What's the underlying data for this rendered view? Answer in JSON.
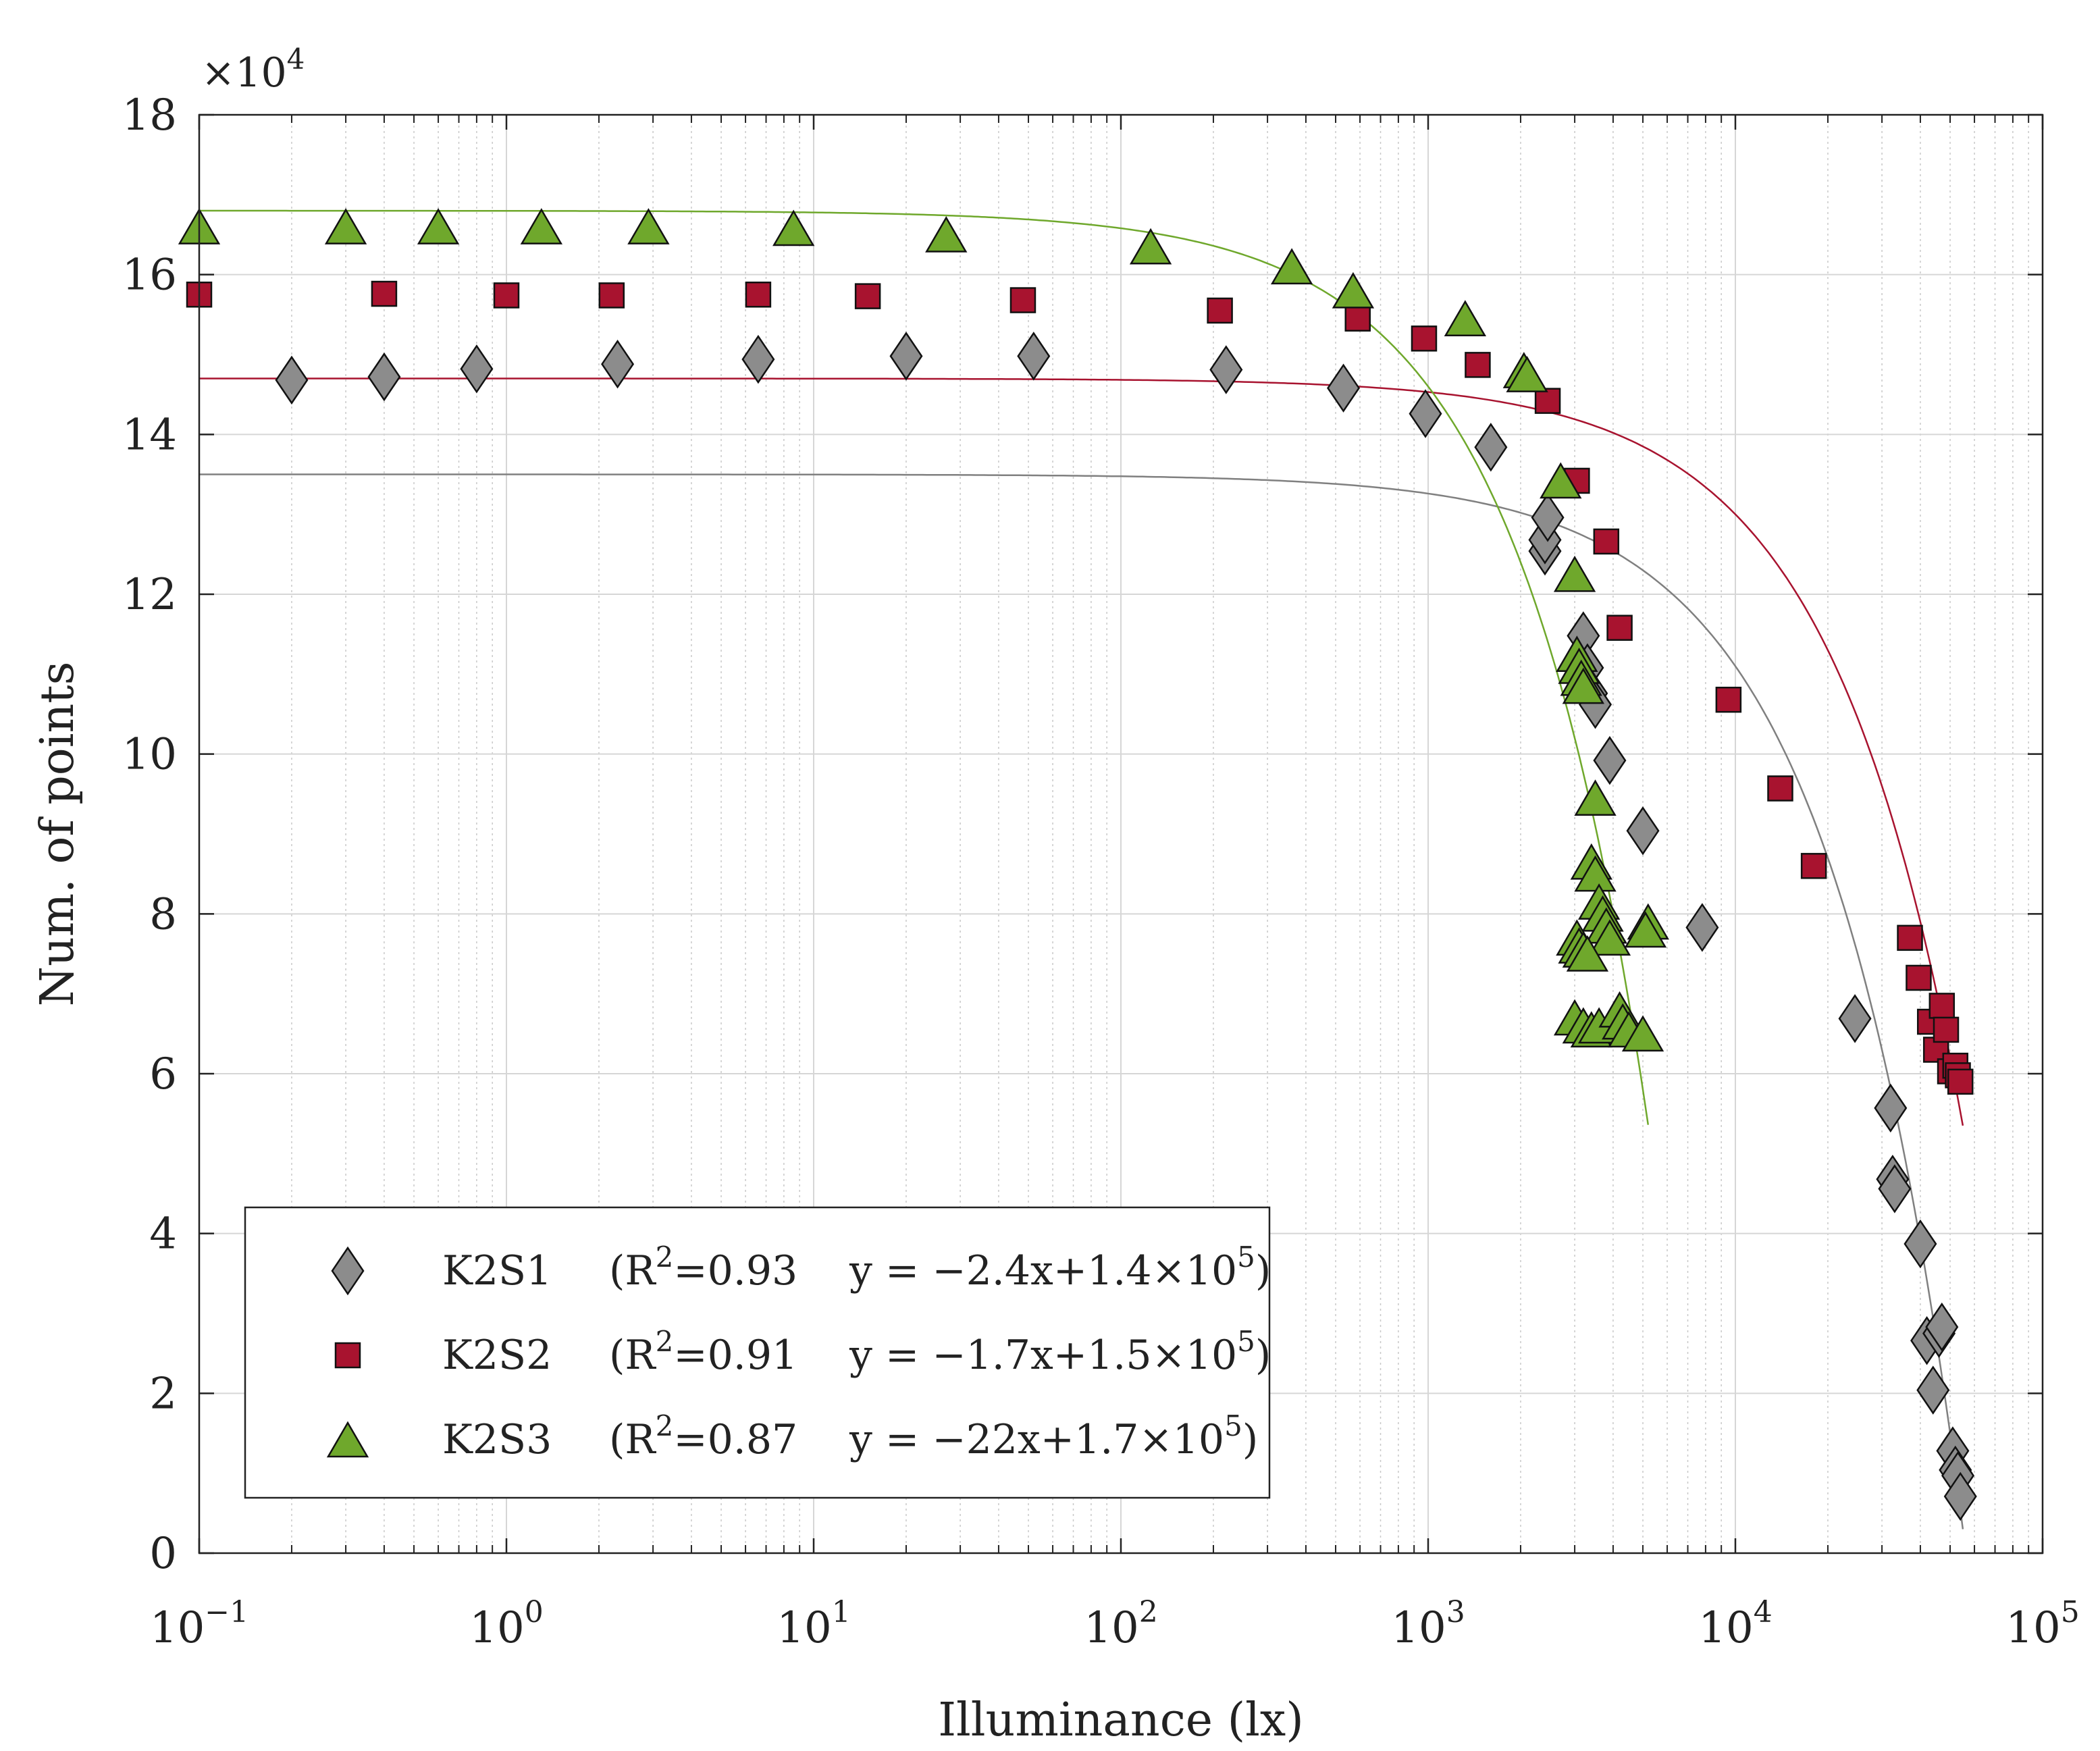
{
  "chart_data": {
    "type": "scatter",
    "title": "",
    "xlabel": "Illuminance (lx)",
    "ylabel": "Num. of points",
    "xscale": "log",
    "xlim": [
      0.1,
      100000
    ],
    "ylim": [
      0,
      180000
    ],
    "y_multiplier_label": "×10",
    "y_multiplier_exponent": "4",
    "grid": true,
    "legend_position": "bottom-left",
    "x_ticks": [
      {
        "base": "10",
        "exp": "−1",
        "value": 0.1
      },
      {
        "base": "10",
        "exp": "0",
        "value": 1
      },
      {
        "base": "10",
        "exp": "1",
        "value": 10
      },
      {
        "base": "10",
        "exp": "2",
        "value": 100
      },
      {
        "base": "10",
        "exp": "3",
        "value": 1000
      },
      {
        "base": "10",
        "exp": "4",
        "value": 10000
      },
      {
        "base": "10",
        "exp": "5",
        "value": 100000
      }
    ],
    "y_ticks": [
      {
        "label": "0",
        "value": 0
      },
      {
        "label": "2",
        "value": 20000
      },
      {
        "label": "4",
        "value": 40000
      },
      {
        "label": "6",
        "value": 60000
      },
      {
        "label": "8",
        "value": 80000
      },
      {
        "label": "10",
        "value": 100000
      },
      {
        "label": "12",
        "value": 120000
      },
      {
        "label": "14",
        "value": 140000
      },
      {
        "label": "16",
        "value": 160000
      },
      {
        "label": "18",
        "value": 180000
      }
    ],
    "series": [
      {
        "name": "K2S1",
        "marker": "diamond",
        "color": "#8c8c8c",
        "fit_color": "#808080",
        "legend": {
          "label": "K2S1",
          "r2_prefix": "(R",
          "r2_exp": "2",
          "r2_value": "=0.93",
          "eq_prefix": "y = −2.4x+1.4×10",
          "eq_exp": "5",
          "eq_suffix": ")"
        },
        "fit": {
          "a": 2.4,
          "b": 135000,
          "x_end": 55000
        },
        "points": [
          [
            0.2,
            146800
          ],
          [
            0.4,
            147200
          ],
          [
            0.8,
            148200
          ],
          [
            2.3,
            148800
          ],
          [
            6.6,
            149400
          ],
          [
            20,
            149800
          ],
          [
            52,
            149800
          ],
          [
            220,
            148100
          ],
          [
            530,
            145800
          ],
          [
            980,
            142600
          ],
          [
            1600,
            138400
          ],
          [
            2400,
            125400
          ],
          [
            2400,
            126800
          ],
          [
            2450,
            129600
          ],
          [
            3200,
            114800
          ],
          [
            3300,
            110800
          ],
          [
            3400,
            107600
          ],
          [
            3500,
            106200
          ],
          [
            3900,
            99200
          ],
          [
            5000,
            90400
          ],
          [
            7800,
            78300
          ],
          [
            24500,
            66900
          ],
          [
            32000,
            55700
          ],
          [
            32500,
            46800
          ],
          [
            33000,
            45600
          ],
          [
            40000,
            38700
          ],
          [
            42000,
            26600
          ],
          [
            44000,
            20400
          ],
          [
            46000,
            27500
          ],
          [
            47000,
            28300
          ],
          [
            51000,
            12800
          ],
          [
            52000,
            10400
          ],
          [
            53000,
            9700
          ],
          [
            54000,
            7100
          ]
        ]
      },
      {
        "name": "K2S2",
        "marker": "square",
        "color": "#a8132f",
        "fit_color": "#a8132f",
        "legend": {
          "label": "K2S2",
          "r2_prefix": "(R",
          "r2_exp": "2",
          "r2_value": "=0.91",
          "eq_prefix": "y = −1.7x+1.5×10",
          "eq_exp": "5",
          "eq_suffix": ")"
        },
        "fit": {
          "a": 1.7,
          "b": 147000,
          "x_end": 55000
        },
        "points": [
          [
            0.1,
            157500
          ],
          [
            0.4,
            157600
          ],
          [
            1,
            157400
          ],
          [
            2.2,
            157400
          ],
          [
            6.6,
            157500
          ],
          [
            15,
            157300
          ],
          [
            48,
            156800
          ],
          [
            210,
            155500
          ],
          [
            590,
            154500
          ],
          [
            970,
            152000
          ],
          [
            1450,
            148700
          ],
          [
            2450,
            144200
          ],
          [
            3050,
            134200
          ],
          [
            3800,
            126600
          ],
          [
            4200,
            115800
          ],
          [
            9500,
            106800
          ],
          [
            14000,
            95700
          ],
          [
            18000,
            86000
          ],
          [
            37000,
            77000
          ],
          [
            39500,
            72000
          ],
          [
            43000,
            66500
          ],
          [
            45000,
            63000
          ],
          [
            47000,
            68500
          ],
          [
            48500,
            65500
          ],
          [
            50000,
            60300
          ],
          [
            52000,
            61000
          ],
          [
            53000,
            59800
          ],
          [
            54000,
            59000
          ]
        ]
      },
      {
        "name": "K2S3",
        "marker": "triangle",
        "color": "#6fa82c",
        "fit_color": "#6fa82c",
        "legend": {
          "label": "K2S3",
          "r2_prefix": "(R",
          "r2_exp": "2",
          "r2_value": "=0.87",
          "eq_prefix": "y = −22x+1.7×10",
          "eq_exp": "5",
          "eq_suffix": ")"
        },
        "fit": {
          "a": 22,
          "b": 168000,
          "x_end": 5200
        },
        "points": [
          [
            0.1,
            166000
          ],
          [
            0.3,
            166000
          ],
          [
            0.6,
            166000
          ],
          [
            1.3,
            166000
          ],
          [
            2.9,
            166000
          ],
          [
            8.6,
            165800
          ],
          [
            27,
            165000
          ],
          [
            125,
            163500
          ],
          [
            360,
            161000
          ],
          [
            570,
            158000
          ],
          [
            1320,
            154500
          ],
          [
            2050,
            148000
          ],
          [
            2100,
            147500
          ],
          [
            2700,
            134200
          ],
          [
            3000,
            122500
          ],
          [
            3050,
            112500
          ],
          [
            3100,
            111000
          ],
          [
            3150,
            109500
          ],
          [
            3200,
            108500
          ],
          [
            3500,
            94500
          ],
          [
            3400,
            86500
          ],
          [
            3500,
            85000
          ],
          [
            3600,
            81500
          ],
          [
            3700,
            80000
          ],
          [
            3800,
            78500
          ],
          [
            3900,
            77000
          ],
          [
            3050,
            77000
          ],
          [
            3100,
            76000
          ],
          [
            3200,
            75500
          ],
          [
            3300,
            75000
          ],
          [
            5200,
            79000
          ],
          [
            5100,
            78000
          ],
          [
            3000,
            67000
          ],
          [
            3200,
            66000
          ],
          [
            3400,
            65500
          ],
          [
            3600,
            66000
          ],
          [
            4200,
            68000
          ],
          [
            4300,
            66500
          ],
          [
            4500,
            65500
          ],
          [
            5000,
            65000
          ]
        ]
      }
    ]
  }
}
